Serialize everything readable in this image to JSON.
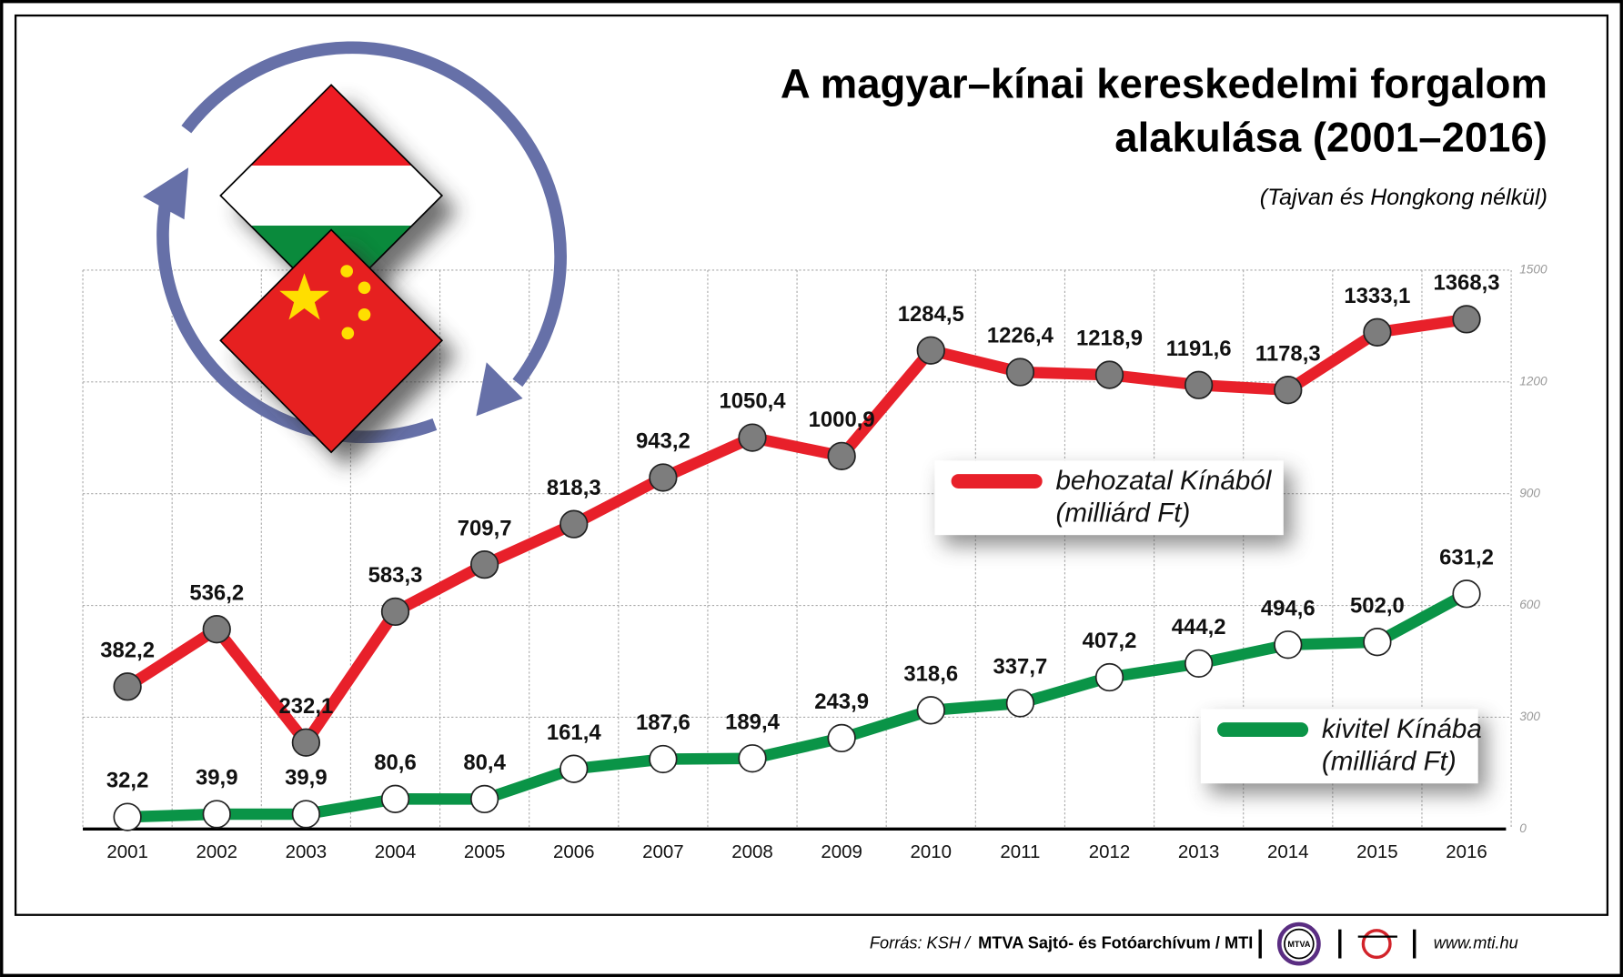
{
  "chart_data": {
    "type": "line",
    "title": [
      "A magyar–kínai kereskedelmi forgalom",
      "alakulása (2001–2016)"
    ],
    "subtitle": "(Tajvan és Hongkong nélkül)",
    "categories": [
      "2001",
      "2002",
      "2003",
      "2004",
      "2005",
      "2006",
      "2007",
      "2008",
      "2009",
      "2010",
      "2011",
      "2012",
      "2013",
      "2014",
      "2015",
      "2016"
    ],
    "series": [
      {
        "name": "behozatal Kínából",
        "unit": "(milliárd Ft)",
        "color": "#e8202a",
        "marker_color": "#7d7d7d",
        "values": [
          382.2,
          536.2,
          232.1,
          583.3,
          709.7,
          818.3,
          943.2,
          1050.4,
          1000.9,
          1284.5,
          1226.4,
          1218.9,
          1191.6,
          1178.3,
          1333.1,
          1368.3
        ],
        "value_labels": [
          "382,2",
          "536,2",
          "232,1",
          "583,3",
          "709,7",
          "818,3",
          "943,2",
          "1050,4",
          "1000,9",
          "1284,5",
          "1226,4",
          "1218,9",
          "1191,6",
          "1178,3",
          "1333,1",
          "1368,3"
        ]
      },
      {
        "name": "kivitel Kínába",
        "unit": "(milliárd Ft)",
        "color": "#0a9447",
        "marker_color": "#ffffff",
        "values": [
          32.2,
          39.9,
          39.9,
          80.6,
          80.4,
          161.4,
          187.6,
          189.4,
          243.9,
          318.6,
          337.7,
          407.2,
          444.2,
          494.6,
          502.0,
          631.2
        ],
        "value_labels": [
          "32,2",
          "39,9",
          "39,9",
          "80,6",
          "80,4",
          "161,4",
          "187,6",
          "189,4",
          "243,9",
          "318,6",
          "337,7",
          "407,2",
          "444,2",
          "494,6",
          "502,0",
          "631,2"
        ]
      }
    ],
    "ylim": [
      0,
      1500
    ],
    "yticks": [
      0,
      300,
      600,
      900,
      1200,
      1500
    ],
    "grid": true
  },
  "footer": {
    "source": "Forrás: KSH /",
    "org": "MTVA Sajtó- és Fotóarchívum / MTI",
    "logo": "MTVA",
    "url": "www.mti.hu"
  }
}
